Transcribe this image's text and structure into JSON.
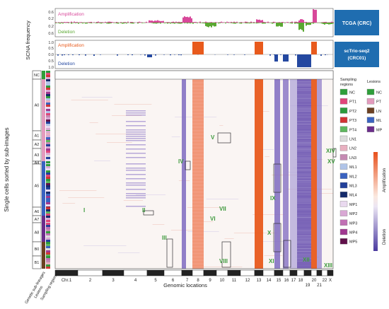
{
  "colors": {
    "amplification": "#e0457a",
    "amp_top": "#d8489a",
    "deletion_green": "#5aa832",
    "amp_orange": "#e85a1c",
    "del_blue": "#2448a0",
    "label_blue": "#1f6db0",
    "heat_purple": "#6a53b0",
    "roman_green": "#3e9a3e",
    "axis_black": "#222222"
  },
  "panel_top": {
    "label": "TCGA (CRC)",
    "amp_label": "Amplification",
    "del_label": "Deletion",
    "yticks": [
      "0.6",
      "0.2",
      "0.2",
      "0.6"
    ]
  },
  "panel_mid": {
    "label": "scTrio-seq2\n(CRC01)",
    "amp_label": "Amplification",
    "del_label": "Deletion",
    "yticks": [
      "1.0",
      "0.5",
      "0.0",
      "0.5",
      "1.0"
    ]
  },
  "ylabel_top": "SCNA frequency",
  "ylabel_main": "Single cells sorted by sub-images",
  "xlabel": "Genomic locations",
  "bottom_left_labels": [
    "Genetic sub-lineages",
    "Lesions",
    "Sampling regions"
  ],
  "sublineage_labels": [
    "NC",
    "A0",
    "A1",
    "A2",
    "A3",
    "A4",
    "A5",
    "A6",
    "A7",
    "A8",
    "B0",
    "B1"
  ],
  "roman_labels": [
    "I",
    "II",
    "III",
    "IV",
    "V",
    "VI",
    "VII",
    "VIII",
    "IX",
    "X",
    "XI",
    "XII",
    "XIII",
    "XIV",
    "XV"
  ],
  "chart_data": {
    "type": "heatmap",
    "xlabel": "Genomic locations",
    "ylabel": "Single cells sorted by sub-images",
    "chromosomes": [
      "1",
      "2",
      "3",
      "4",
      "5",
      "6",
      "7",
      "8",
      "9",
      "10",
      "11",
      "12",
      "13",
      "14",
      "15",
      "16",
      "17",
      "18",
      "19",
      "20",
      "21",
      "22",
      "X"
    ],
    "chrom_tick_labels": [
      "Chr.1",
      "2",
      "3",
      "4",
      "5",
      "6",
      "7",
      "8",
      "9",
      "10",
      "11",
      "12",
      "13",
      "14",
      "15",
      "16",
      "17",
      "18",
      "19",
      "20",
      "21",
      "22",
      "X"
    ],
    "colorbar": {
      "top": "Amplification",
      "bottom": "Deletion"
    },
    "tcga_amplification_peaks": {
      "chr7": 0.3,
      "chr8q": 0.35,
      "chr13": 0.4,
      "chr20": 0.7
    },
    "tcga_deletion_peaks": {
      "chr8p": 0.3,
      "chr17p": 0.45,
      "chr18": 0.6
    },
    "sc_amplification": {
      "chr8": 1.0,
      "chr13": 1.0,
      "chr20": 1.0
    },
    "sc_deletion": {
      "chr4": 0.3,
      "chr14": 0.8,
      "chr15": 0.6,
      "chr17": 0.9,
      "chr18": 1.0
    }
  },
  "legend_sampling": {
    "title": "Sampling regions",
    "items": [
      {
        "label": "NC",
        "color": "#2f9e3a"
      },
      {
        "label": "PT1",
        "color": "#e0457a"
      },
      {
        "label": "PT2",
        "color": "#2a9a3c"
      },
      {
        "label": "PT3",
        "color": "#d23434"
      },
      {
        "label": "PT4",
        "color": "#5fb85f"
      },
      {
        "label": "LN1",
        "color": "#dcdcdc"
      },
      {
        "label": "LN2",
        "color": "#e8b0c0"
      },
      {
        "label": "LN3",
        "color": "#c58ab3"
      },
      {
        "label": "ML1",
        "color": "#b0c4e8"
      },
      {
        "label": "ML2",
        "color": "#3a62c0"
      },
      {
        "label": "ML3",
        "color": "#22409a"
      },
      {
        "label": "ML4",
        "color": "#142a6a"
      },
      {
        "label": "MP1",
        "color": "#e9d9ef"
      },
      {
        "label": "MP2",
        "color": "#d9a8d4"
      },
      {
        "label": "MP3",
        "color": "#c070b4"
      },
      {
        "label": "MP4",
        "color": "#a03890"
      },
      {
        "label": "MP5",
        "color": "#60104a"
      }
    ]
  },
  "legend_lesions": {
    "title": "Lesions",
    "items": [
      {
        "label": "NC",
        "color": "#2f9e3a"
      },
      {
        "label": "PT",
        "color": "#e39bbd"
      },
      {
        "label": "LN",
        "color": "#6b4022"
      },
      {
        "label": "ML",
        "color": "#3a62c0"
      },
      {
        "label": "MP",
        "color": "#6b2c8a"
      }
    ]
  }
}
